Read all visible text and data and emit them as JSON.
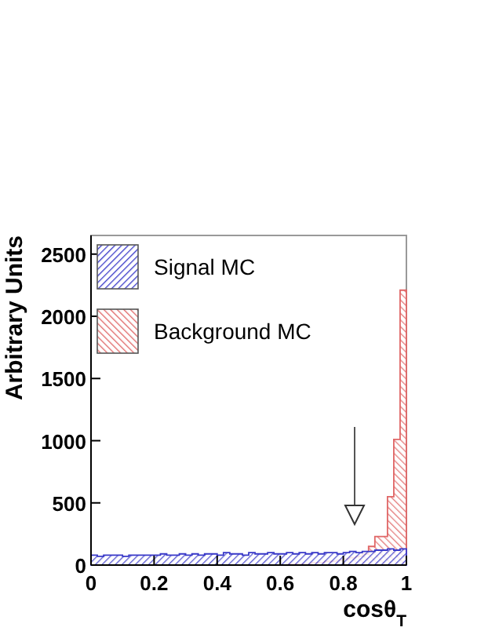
{
  "chart_data": {
    "type": "histogram",
    "xlabel": "cosθ$_{T}$",
    "ylabel": "Arbitrary Units",
    "bins": [
      0,
      0.02,
      0.04,
      0.06,
      0.08,
      0.1,
      0.12,
      0.14,
      0.16,
      0.18,
      0.2,
      0.22,
      0.24,
      0.26,
      0.28,
      0.3,
      0.32,
      0.34,
      0.36,
      0.38,
      0.4,
      0.42,
      0.44,
      0.46,
      0.48,
      0.5,
      0.52,
      0.54,
      0.56,
      0.58,
      0.6,
      0.62,
      0.64,
      0.66,
      0.68,
      0.7,
      0.72,
      0.74,
      0.76,
      0.78,
      0.8,
      0.82,
      0.84,
      0.86,
      0.88,
      0.9,
      0.92,
      0.94,
      0.96,
      0.98,
      1
    ],
    "series": [
      {
        "name": "Background MC",
        "color": "#e06666",
        "values": [
          0,
          0,
          0,
          0,
          0,
          0,
          0,
          0,
          0,
          0,
          0,
          0,
          0,
          0,
          0,
          0,
          0,
          0,
          0,
          0,
          0,
          0,
          0,
          0,
          0,
          0,
          0,
          0,
          0,
          0,
          0,
          10,
          10,
          10,
          10,
          20,
          20,
          30,
          30,
          40,
          50,
          60,
          70,
          90,
          150,
          230,
          230,
          550,
          1010,
          2210
        ]
      },
      {
        "name": "Signal MC",
        "color": "#3838c8",
        "values": [
          80,
          70,
          80,
          80,
          80,
          70,
          80,
          80,
          80,
          80,
          80,
          90,
          80,
          80,
          90,
          80,
          90,
          80,
          90,
          90,
          80,
          100,
          90,
          90,
          80,
          100,
          90,
          90,
          100,
          90,
          90,
          100,
          90,
          100,
          90,
          100,
          90,
          100,
          100,
          90,
          100,
          110,
          100,
          110,
          110,
          120,
          120,
          130,
          120,
          130
        ]
      }
    ],
    "xlim": [
      0,
      1
    ],
    "xticks": [
      0,
      0.2,
      0.4,
      0.6,
      0.8,
      1
    ],
    "ylim": [
      0,
      2650
    ],
    "yticks": [
      0,
      500,
      1000,
      1500,
      2000,
      2500
    ],
    "legend": "top left",
    "grid": false
  }
}
